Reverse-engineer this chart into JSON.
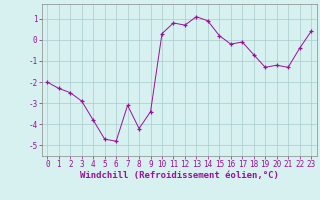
{
  "x": [
    0,
    1,
    2,
    3,
    4,
    5,
    6,
    7,
    8,
    9,
    10,
    11,
    12,
    13,
    14,
    15,
    16,
    17,
    18,
    19,
    20,
    21,
    22,
    23
  ],
  "y": [
    -2.0,
    -2.3,
    -2.5,
    -2.9,
    -3.8,
    -4.7,
    -4.8,
    -3.1,
    -4.2,
    -3.4,
    0.3,
    0.8,
    0.7,
    1.1,
    0.9,
    0.2,
    -0.2,
    -0.1,
    -0.7,
    -1.3,
    -1.2,
    -1.3,
    -0.4,
    0.4
  ],
  "line_color": "#991199",
  "marker": "+",
  "marker_size": 3,
  "bg_color": "#d7f0f0",
  "grid_color": "#aacccc",
  "xlabel": "Windchill (Refroidissement éolien,°C)",
  "xlim": [
    -0.5,
    23.5
  ],
  "ylim": [
    -5.5,
    1.7
  ],
  "yticks": [
    -5,
    -4,
    -3,
    -2,
    -1,
    0,
    1
  ],
  "xticks": [
    0,
    1,
    2,
    3,
    4,
    5,
    6,
    7,
    8,
    9,
    10,
    11,
    12,
    13,
    14,
    15,
    16,
    17,
    18,
    19,
    20,
    21,
    22,
    23
  ],
  "tick_label_size": 5.5,
  "xlabel_size": 6.5,
  "spine_color": "#888888"
}
